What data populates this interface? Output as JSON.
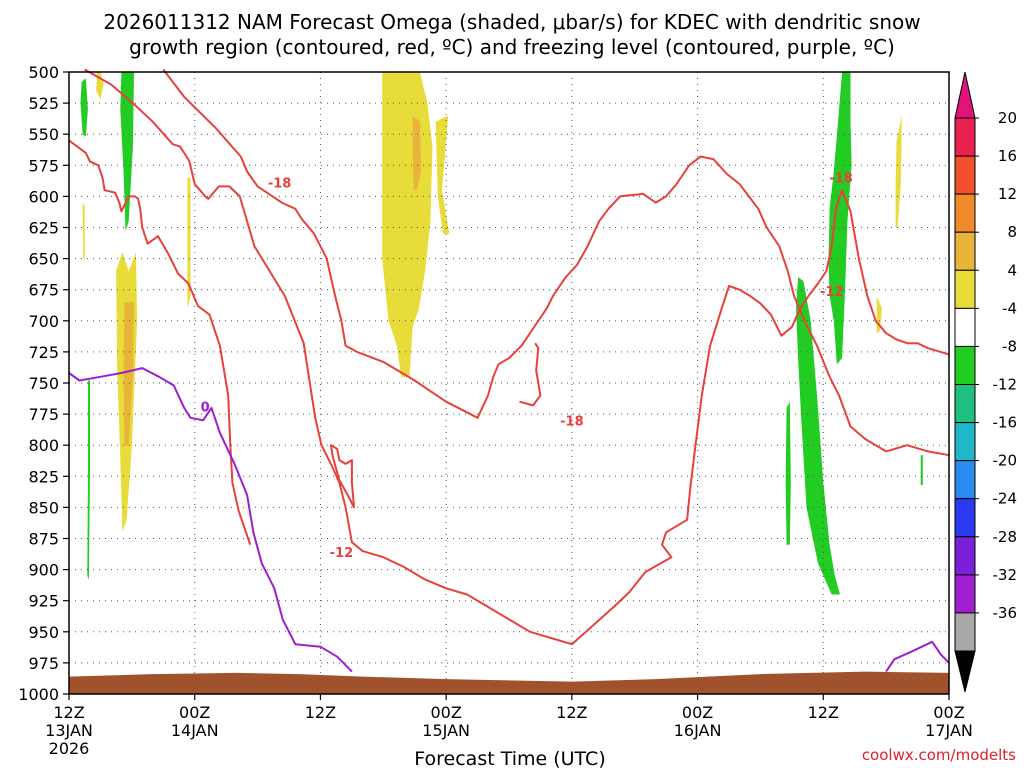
{
  "title": {
    "line1": "2026011312 NAM Forecast Omega (shaded, μbar/s) for KDEC with dendritic snow",
    "line2": "growth region (contoured, red, ºC) and freezing level (contoured, purple, ºC)"
  },
  "credit": "coolwx.com/modelts",
  "chart_data": {
    "type": "heatmap",
    "title": "2026011312 NAM Forecast Omega (shaded, μbar/s) for KDEC with dendritic snow growth region (contoured, red, ºC) and freezing level (contoured, purple, ºC)",
    "xlabel": "Forecast Time (UTC)",
    "ylabel": "",
    "x_unit": "hours since 2026-01-13 12Z",
    "x_range": [
      0,
      84
    ],
    "y_unit": "hPa",
    "y_range": [
      1000,
      500
    ],
    "y_ticks": [
      500,
      525,
      550,
      575,
      600,
      625,
      650,
      675,
      700,
      725,
      750,
      775,
      800,
      825,
      850,
      875,
      900,
      925,
      950,
      975,
      1000
    ],
    "x_ticks": [
      {
        "hour": 0,
        "l1": "12Z",
        "l2": "13JAN",
        "l3": "2026"
      },
      {
        "hour": 12,
        "l1": "00Z",
        "l2": "14JAN",
        "l3": ""
      },
      {
        "hour": 24,
        "l1": "12Z",
        "l2": "",
        "l3": ""
      },
      {
        "hour": 36,
        "l1": "00Z",
        "l2": "15JAN",
        "l3": ""
      },
      {
        "hour": 48,
        "l1": "12Z",
        "l2": "",
        "l3": ""
      },
      {
        "hour": 60,
        "l1": "00Z",
        "l2": "16JAN",
        "l3": ""
      },
      {
        "hour": 72,
        "l1": "12Z",
        "l2": "",
        "l3": ""
      },
      {
        "hour": 84,
        "l1": "00Z",
        "l2": "17JAN",
        "l3": ""
      }
    ],
    "grid": true,
    "colorbar": {
      "labels": [
        "20",
        "16",
        "12",
        "8",
        "4",
        "-4",
        "-8",
        "-12",
        "-16",
        "-20",
        "-24",
        "-28",
        "-32",
        "-36"
      ],
      "colors": [
        "#e8214f",
        "#f0502c",
        "#f08a2a",
        "#e8b43a",
        "#e8dc3a",
        "#ffffff",
        "#22cc22",
        "#1fbf80",
        "#20b8c8",
        "#2a8af0",
        "#2a3af0",
        "#7a20d8",
        "#a020d0",
        "#a8a8a8",
        "#000000"
      ],
      "top_arrow_color": "#e0147a",
      "bottom_arrow_color": "#000000"
    },
    "omega_areas": [
      {
        "color": "#22cc22",
        "points": [
          [
            1.2,
            508
          ],
          [
            1.6,
            505
          ],
          [
            1.8,
            530
          ],
          [
            1.6,
            552
          ],
          [
            1.3,
            550
          ],
          [
            1.1,
            525
          ]
        ]
      },
      {
        "color": "#e8dc3a",
        "points": [
          [
            2.7,
            500
          ],
          [
            3.0,
            500
          ],
          [
            3.3,
            510
          ],
          [
            3.0,
            522
          ],
          [
            2.6,
            515
          ]
        ]
      },
      {
        "color": "#22cc22",
        "points": [
          [
            5.0,
            500
          ],
          [
            6.2,
            500
          ],
          [
            6.1,
            560
          ],
          [
            5.7,
            620
          ],
          [
            5.4,
            628
          ],
          [
            5.2,
            580
          ],
          [
            4.9,
            530
          ]
        ]
      },
      {
        "color": "#e8dc3a",
        "points": [
          [
            1.3,
            605
          ],
          [
            1.5,
            608
          ],
          [
            1.5,
            650
          ],
          [
            1.35,
            650
          ]
        ]
      },
      {
        "color": "#22cc22",
        "points": [
          [
            1.8,
            748
          ],
          [
            2.0,
            748
          ],
          [
            2.0,
            820
          ],
          [
            1.9,
            908
          ],
          [
            1.75,
            905
          ],
          [
            1.8,
            830
          ]
        ]
      },
      {
        "color": "#e8dc3a",
        "points": [
          [
            4.5,
            660
          ],
          [
            5.1,
            645
          ],
          [
            5.7,
            660
          ],
          [
            6.4,
            645
          ],
          [
            6.5,
            700
          ],
          [
            6.0,
            800
          ],
          [
            5.5,
            860
          ],
          [
            5.1,
            870
          ],
          [
            4.9,
            810
          ],
          [
            4.6,
            740
          ]
        ]
      },
      {
        "color": "#e8b43a",
        "points": [
          [
            5.3,
            685
          ],
          [
            6.2,
            685
          ],
          [
            6.1,
            745
          ],
          [
            5.7,
            800
          ],
          [
            5.3,
            800
          ],
          [
            5.2,
            740
          ]
        ]
      },
      {
        "color": "#e8dc3a",
        "points": [
          [
            11.3,
            585
          ],
          [
            11.6,
            585
          ],
          [
            11.6,
            680
          ],
          [
            11.3,
            690
          ]
        ]
      },
      {
        "color": "#e8dc3a",
        "points": [
          [
            29.9,
            500
          ],
          [
            33.5,
            500
          ],
          [
            34.2,
            525
          ],
          [
            34.7,
            560
          ],
          [
            34.5,
            620
          ],
          [
            34.0,
            660
          ],
          [
            33.4,
            690
          ],
          [
            32.8,
            705
          ],
          [
            32.5,
            745
          ],
          [
            31.7,
            745
          ],
          [
            31.3,
            720
          ],
          [
            30.5,
            700
          ],
          [
            29.9,
            650
          ]
        ]
      },
      {
        "color": "#e8b43a",
        "points": [
          [
            32.8,
            535
          ],
          [
            33.5,
            540
          ],
          [
            33.6,
            580
          ],
          [
            33.2,
            595
          ],
          [
            32.9,
            595
          ],
          [
            32.8,
            560
          ]
        ]
      },
      {
        "color": "#e8dc3a",
        "points": [
          [
            35.0,
            540
          ],
          [
            36.2,
            535
          ],
          [
            35.6,
            595
          ],
          [
            36.3,
            630
          ],
          [
            35.7,
            630
          ],
          [
            35.2,
            600
          ]
        ]
      },
      {
        "color": "#22cc22",
        "points": [
          [
            73.8,
            500
          ],
          [
            74.6,
            500
          ],
          [
            74.6,
            540
          ],
          [
            74.7,
            575
          ],
          [
            74.3,
            620
          ],
          [
            74.1,
            670
          ],
          [
            73.8,
            730
          ],
          [
            73.3,
            735
          ],
          [
            73.0,
            700
          ],
          [
            72.6,
            680
          ],
          [
            72.5,
            650
          ],
          [
            72.6,
            610
          ],
          [
            73.0,
            580
          ],
          [
            73.4,
            540
          ]
        ]
      },
      {
        "color": "#22cc22",
        "points": [
          [
            69.6,
            665
          ],
          [
            70.1,
            668
          ],
          [
            70.8,
            700
          ],
          [
            71.4,
            760
          ],
          [
            72.0,
            830
          ],
          [
            72.6,
            880
          ],
          [
            73.1,
            905
          ],
          [
            73.6,
            920
          ],
          [
            72.8,
            920
          ],
          [
            71.5,
            895
          ],
          [
            70.4,
            850
          ],
          [
            69.9,
            780
          ],
          [
            69.6,
            730
          ],
          [
            69.4,
            690
          ]
        ]
      },
      {
        "color": "#22cc22",
        "points": [
          [
            68.5,
            770
          ],
          [
            68.8,
            765
          ],
          [
            68.9,
            830
          ],
          [
            68.8,
            880
          ],
          [
            68.5,
            880
          ],
          [
            68.4,
            830
          ]
        ]
      },
      {
        "color": "#22cc22",
        "points": [
          [
            81.3,
            808
          ],
          [
            81.5,
            808
          ],
          [
            81.5,
            832
          ],
          [
            81.3,
            832
          ]
        ]
      },
      {
        "color": "#e8dc3a",
        "points": [
          [
            79.0,
            555
          ],
          [
            79.5,
            535
          ],
          [
            79.4,
            590
          ],
          [
            79.1,
            625
          ],
          [
            78.9,
            625
          ],
          [
            78.9,
            590
          ]
        ]
      },
      {
        "color": "#e8dc3a",
        "points": [
          [
            77.1,
            680
          ],
          [
            77.6,
            690
          ],
          [
            77.4,
            708
          ],
          [
            77.1,
            710
          ]
        ]
      }
    ],
    "series": [
      {
        "label": "-18",
        "color": "#e8413c",
        "points": [
          [
            1.5,
            498
          ],
          [
            4.0,
            510
          ],
          [
            6.1,
            525
          ],
          [
            8.0,
            540
          ],
          [
            9.9,
            558
          ],
          [
            10.6,
            560
          ],
          [
            11.0,
            565
          ],
          [
            11.5,
            572
          ],
          [
            12.0,
            590
          ],
          [
            12.5,
            595
          ],
          [
            13.0,
            600
          ],
          [
            13.3,
            602
          ],
          [
            14.3,
            592
          ],
          [
            15.3,
            592
          ],
          [
            16.3,
            600
          ],
          [
            17.7,
            640
          ],
          [
            20.6,
            680
          ],
          [
            22.4,
            718
          ],
          [
            23.5,
            778
          ],
          [
            24.1,
            800
          ],
          [
            25.0,
            815
          ],
          [
            25.8,
            830
          ],
          [
            26.4,
            850
          ],
          [
            27.0,
            878
          ],
          [
            28.0,
            885
          ],
          [
            30.0,
            890
          ],
          [
            32.0,
            898
          ],
          [
            34.0,
            908
          ],
          [
            36.0,
            915
          ],
          [
            38.0,
            920
          ],
          [
            40.0,
            930
          ],
          [
            42.0,
            940
          ],
          [
            44.0,
            950
          ],
          [
            46.0,
            955
          ],
          [
            48.0,
            960
          ],
          [
            50.0,
            945
          ],
          [
            52.0,
            930
          ],
          [
            53.5,
            918
          ],
          [
            55.0,
            902
          ],
          [
            57.5,
            890
          ],
          [
            56.6,
            880
          ],
          [
            57.0,
            870
          ],
          [
            59.0,
            860
          ],
          [
            59.3,
            835
          ],
          [
            59.8,
            800
          ],
          [
            60.4,
            760
          ],
          [
            61.2,
            720
          ],
          [
            62.3,
            690
          ],
          [
            63.0,
            672
          ],
          [
            64.0,
            675
          ],
          [
            65.0,
            680
          ],
          [
            66.0,
            686
          ],
          [
            67.0,
            695
          ],
          [
            68.0,
            712
          ],
          [
            69.0,
            705
          ],
          [
            69.8,
            690
          ],
          [
            70.6,
            680
          ]
        ],
        "closed": false
      },
      {
        "label": "-12",
        "color": "#e8413c",
        "points": [
          [
            0.0,
            555
          ],
          [
            1.6,
            565
          ],
          [
            2.0,
            572
          ],
          [
            2.8,
            575
          ],
          [
            3.2,
            585
          ],
          [
            3.4,
            595
          ],
          [
            4.4,
            597
          ],
          [
            4.8,
            605
          ],
          [
            5.0,
            612
          ],
          [
            5.7,
            600
          ],
          [
            6.3,
            600
          ],
          [
            6.6,
            602
          ],
          [
            6.8,
            610
          ],
          [
            7.0,
            625
          ],
          [
            7.5,
            638
          ],
          [
            8.5,
            632
          ],
          [
            9.4,
            645
          ],
          [
            10.4,
            662
          ],
          [
            11.4,
            670
          ],
          [
            12.3,
            688
          ],
          [
            13.4,
            695
          ],
          [
            14.4,
            720
          ],
          [
            15.2,
            760
          ],
          [
            15.4,
            800
          ],
          [
            15.6,
            830
          ],
          [
            16.2,
            853
          ],
          [
            17.3,
            880
          ]
        ],
        "closed": false
      }
    ],
    "freezing_level": {
      "label": "0",
      "color": "#9b1fd0"
    }
  }
}
